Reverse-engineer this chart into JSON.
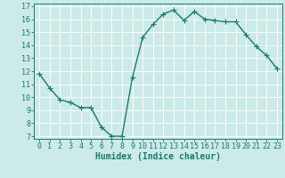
{
  "x": [
    0,
    1,
    2,
    3,
    4,
    5,
    6,
    7,
    8,
    9,
    10,
    11,
    12,
    13,
    14,
    15,
    16,
    17,
    18,
    19,
    20,
    21,
    22,
    23
  ],
  "y": [
    11.8,
    10.7,
    9.8,
    9.6,
    9.2,
    9.2,
    7.7,
    7.0,
    7.0,
    11.5,
    14.6,
    15.6,
    16.4,
    16.7,
    15.9,
    16.6,
    16.0,
    15.9,
    15.8,
    15.8,
    14.8,
    13.9,
    13.2,
    12.2
  ],
  "line_color": "#1a7a6e",
  "marker": "+",
  "markersize": 4,
  "linewidth": 1.0,
  "background_color": "#cceae7",
  "grid_color": "#ffffff",
  "xlabel": "Humidex (Indice chaleur)",
  "xlabel_fontsize": 7,
  "tick_fontsize": 6,
  "xlim": [
    -0.5,
    23.5
  ],
  "ylim": [
    6.8,
    17.2
  ],
  "yticks": [
    7,
    8,
    9,
    10,
    11,
    12,
    13,
    14,
    15,
    16,
    17
  ],
  "xticks": [
    0,
    1,
    2,
    3,
    4,
    5,
    6,
    7,
    8,
    9,
    10,
    11,
    12,
    13,
    14,
    15,
    16,
    17,
    18,
    19,
    20,
    21,
    22,
    23
  ]
}
